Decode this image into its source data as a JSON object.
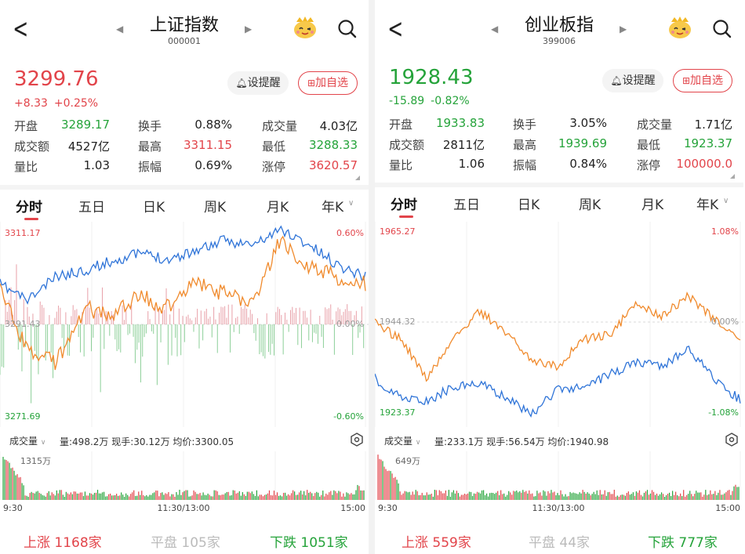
{
  "panels": [
    {
      "title": "上证指数",
      "code": "000001",
      "price": "3299.76",
      "change": "+8.33",
      "change_pct": "+0.25%",
      "trend": "up",
      "remind_label": "设提醒",
      "add_label": "加自选",
      "stats": [
        {
          "label": "开盘",
          "value": "3289.17",
          "color": "green"
        },
        {
          "label": "换手",
          "value": "0.88%",
          "color": "dark"
        },
        {
          "label": "成交量",
          "value": "4.03亿",
          "color": "dark"
        },
        {
          "label": "成交额",
          "value": "4527亿",
          "color": "dark"
        },
        {
          "label": "最高",
          "value": "3311.15",
          "color": "red"
        },
        {
          "label": "最低",
          "value": "3288.33",
          "color": "green"
        },
        {
          "label": "量比",
          "value": "1.03",
          "color": "dark"
        },
        {
          "label": "振幅",
          "value": "0.69%",
          "color": "dark"
        },
        {
          "label": "涨停",
          "value": "3620.57",
          "color": "red"
        }
      ],
      "tabs": [
        "分时",
        "五日",
        "日K",
        "周K",
        "月K",
        "年K"
      ],
      "axis": {
        "top_price": "3311.17",
        "mid_price": "3291.43",
        "bottom_price": "3271.69",
        "top_pct": "0.60%",
        "mid_pct": "0.00%",
        "bottom_pct": "-0.60%"
      },
      "volume_bar": {
        "selector": "成交量",
        "info": "量:498.2万  现手:30.12万  均价:3300.05",
        "max_label": "1315万"
      },
      "time_labels": [
        "9:30",
        "11:30/13:00",
        "15:00"
      ],
      "footer": {
        "up_label": "上涨",
        "up_count": "1168家",
        "flat_label": "平盘",
        "flat_count": "105家",
        "down_label": "下跌",
        "down_count": "1051家"
      }
    },
    {
      "title": "创业板指",
      "code": "399006",
      "price": "1928.43",
      "change": "-15.89",
      "change_pct": "-0.82%",
      "trend": "down",
      "remind_label": "设提醒",
      "add_label": "加自选",
      "stats": [
        {
          "label": "开盘",
          "value": "1933.83",
          "color": "green"
        },
        {
          "label": "换手",
          "value": "3.05%",
          "color": "dark"
        },
        {
          "label": "成交量",
          "value": "1.71亿",
          "color": "dark"
        },
        {
          "label": "成交额",
          "value": "2811亿",
          "color": "dark"
        },
        {
          "label": "最高",
          "value": "1939.69",
          "color": "green"
        },
        {
          "label": "最低",
          "value": "1923.37",
          "color": "green"
        },
        {
          "label": "量比",
          "value": "1.06",
          "color": "dark"
        },
        {
          "label": "振幅",
          "value": "0.84%",
          "color": "dark"
        },
        {
          "label": "涨停",
          "value": "100000.0",
          "color": "red"
        }
      ],
      "tabs": [
        "分时",
        "五日",
        "日K",
        "周K",
        "月K",
        "年K"
      ],
      "axis": {
        "top_price": "1965.27",
        "mid_price": "1944.32",
        "bottom_price": "1923.37",
        "top_pct": "1.08%",
        "mid_pct": "0.00%",
        "bottom_pct": "-1.08%"
      },
      "volume_bar": {
        "selector": "成交量",
        "info": "量:233.1万  现手:56.54万  均价:1940.98",
        "max_label": "649万"
      },
      "time_labels": [
        "9:30",
        "11:30/13:00",
        "15:00"
      ],
      "footer": {
        "up_label": "上涨",
        "up_count": "559家",
        "flat_label": "平盘",
        "flat_count": "44家",
        "down_label": "下跌",
        "down_count": "777家"
      }
    }
  ],
  "colors": {
    "up": "#e2444a",
    "down": "#25a33a",
    "blue_line": "#2f74d8",
    "orange_line": "#f08a2c"
  }
}
